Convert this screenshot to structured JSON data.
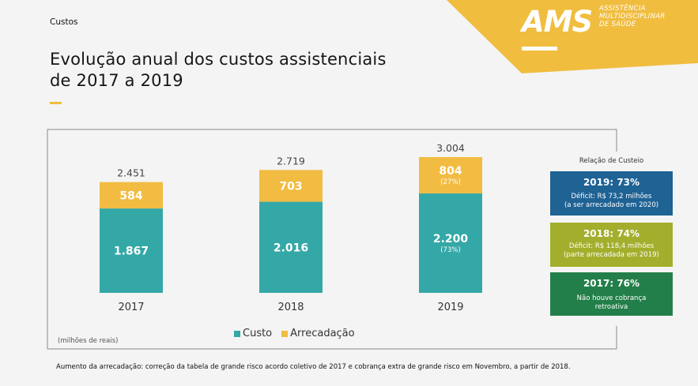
{
  "section_label": "Custos",
  "page_title_line1": "Evolução anual dos custos assistenciais",
  "page_title_line2": "de 2017 a 2019",
  "logo": {
    "name": "AMS",
    "subtitle_line1": "ASSISTÊNCIA",
    "subtitle_line2": "MULTIDISCIPLINAR",
    "subtitle_line3": "DE SAÚDE",
    "color": "#f0bd3f"
  },
  "colors": {
    "custo": "#34a8a6",
    "arrecadacao": "#f2bc42",
    "box_2019": "#1f6294",
    "box_2018": "#a3ae2c",
    "box_2017": "#237f49"
  },
  "chart_data": {
    "type": "bar",
    "stacked": true,
    "categories": [
      "2017",
      "2018",
      "2019"
    ],
    "series": [
      {
        "name": "Custo",
        "values": [
          1867,
          2016,
          2200
        ],
        "labels": [
          "1.867",
          "2.016",
          "2.200"
        ],
        "pct_labels": [
          "",
          "",
          "(73%)"
        ]
      },
      {
        "name": "Arrecadação",
        "values": [
          584,
          703,
          804
        ],
        "labels": [
          "584",
          "703",
          "804"
        ],
        "pct_labels": [
          "",
          "",
          "(27%)"
        ]
      }
    ],
    "totals": [
      2451,
      2719,
      3004
    ],
    "total_labels": [
      "2.451",
      "2.719",
      "3.004"
    ],
    "units_note": "(milhões de reais)",
    "legend": [
      "Custo",
      "Arrecadação"
    ],
    "legend_position": "bottom-center",
    "ylim": [
      0,
      3004
    ],
    "grid": false
  },
  "ratio_panel": {
    "header": "Relação de Custeio",
    "boxes": [
      {
        "title": "2019: 73%",
        "desc_line1": "Déficit: R$ 73,2 milhões",
        "desc_line2": "(a ser arrecadado em 2020)"
      },
      {
        "title": "2018: 74%",
        "desc_line1": "Déficit: R$ 118,4 milhões",
        "desc_line2": "(parte arrecadada em 2019)"
      },
      {
        "title": "2017: 76%",
        "desc_line1": "Não houve cobrança",
        "desc_line2": "retroativa"
      }
    ]
  },
  "footnote": "Aumento da arrecadação: correção da tabela de grande risco acordo coletivo de 2017 e cobrança extra de grande risco em Novembro, a partir de 2018."
}
